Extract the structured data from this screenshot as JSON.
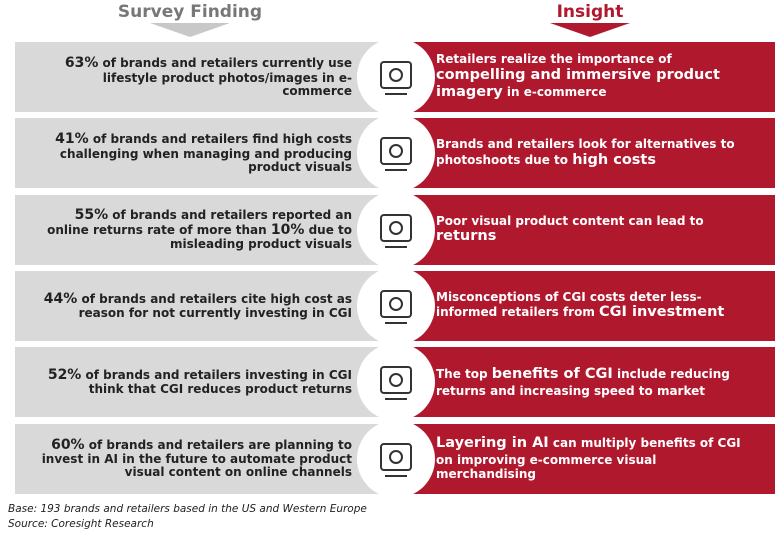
{
  "headers": {
    "finding": "Survey Finding",
    "insight": "Insight"
  },
  "rows": [
    {
      "finding": [
        {
          "text": "63%",
          "bold": true
        },
        {
          "text": " of brands and retailers currently use lifestyle product photos/images in e-commerce",
          "bold": false
        }
      ],
      "insight": [
        {
          "text": "Retailers realize the importance of ",
          "bold": false
        },
        {
          "text": "compelling and immersive product imagery",
          "bold": true
        },
        {
          "text": " in e-commerce",
          "bold": false
        }
      ]
    },
    {
      "finding": [
        {
          "text": "41%",
          "bold": true
        },
        {
          "text": " of brands and retailers find high costs challenging when managing and producing product visuals",
          "bold": false
        }
      ],
      "insight": [
        {
          "text": "Brands and retailers look for alternatives to photoshoots due to ",
          "bold": false
        },
        {
          "text": "high costs",
          "bold": true
        }
      ]
    },
    {
      "finding": [
        {
          "text": "55%",
          "bold": true
        },
        {
          "text": " of brands and retailers reported an online returns rate of more than ",
          "bold": false
        },
        {
          "text": "10%",
          "bold": true
        },
        {
          "text": " due to misleading product visuals",
          "bold": false
        }
      ],
      "insight": [
        {
          "text": "Poor visual product content can lead to ",
          "bold": false
        },
        {
          "text": "returns",
          "bold": true
        }
      ]
    },
    {
      "finding": [
        {
          "text": "44%",
          "bold": true
        },
        {
          "text": " of brands and retailers cite high cost as reason for not currently investing in CGI",
          "bold": false
        }
      ],
      "insight": [
        {
          "text": "Misconceptions of CGI costs deter less-informed retailers from ",
          "bold": false
        },
        {
          "text": "CGI investment",
          "bold": true
        }
      ]
    },
    {
      "finding": [
        {
          "text": "52%",
          "bold": true
        },
        {
          "text": " of brands and retailers investing in CGI think that CGI reduces product returns",
          "bold": false
        }
      ],
      "insight": [
        {
          "text": "The top ",
          "bold": false
        },
        {
          "text": "benefits of CGI",
          "bold": true
        },
        {
          "text": " include reducing returns and increasing speed to market",
          "bold": false
        }
      ]
    },
    {
      "finding": [
        {
          "text": "60%",
          "bold": true
        },
        {
          "text": " of brands and retailers are planning to invest in AI in the future to automate product visual content on online channels",
          "bold": false
        }
      ],
      "insight": [
        {
          "text": "Layering in AI",
          "bold": true
        },
        {
          "text": " can multiply benefits of CGI on improving e-commerce visual merchandising",
          "bold": false
        }
      ]
    }
  ],
  "footer": {
    "base": "Base: 193 brands and retailers based in the US and Western Europe",
    "source": "Source: Coresight Research"
  }
}
